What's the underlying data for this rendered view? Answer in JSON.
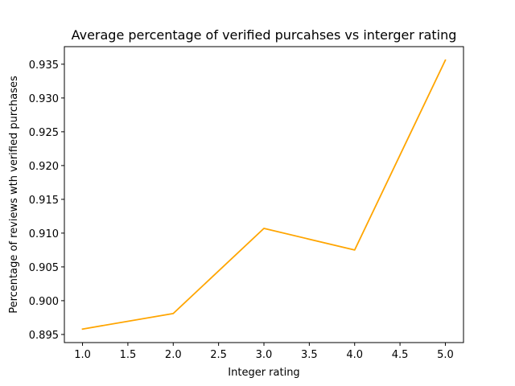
{
  "chart_data": {
    "type": "line",
    "title": "Average percentage of verified purcahses vs interger rating",
    "xlabel": "Integer rating",
    "ylabel": "Percentage of reviews wth verified purchases",
    "xlim": [
      0.8,
      5.2
    ],
    "ylim": [
      0.8938,
      0.9376
    ],
    "xticks": [
      1.0,
      1.5,
      2.0,
      2.5,
      3.0,
      3.5,
      4.0,
      4.5,
      5.0
    ],
    "xtick_labels": [
      "1.0",
      "1.5",
      "2.0",
      "2.5",
      "3.0",
      "3.5",
      "4.0",
      "4.5",
      "5.0"
    ],
    "yticks": [
      0.895,
      0.9,
      0.905,
      0.91,
      0.915,
      0.92,
      0.925,
      0.93,
      0.935
    ],
    "ytick_labels": [
      "0.895",
      "0.900",
      "0.905",
      "0.910",
      "0.915",
      "0.920",
      "0.925",
      "0.930",
      "0.935"
    ],
    "grid": false,
    "series": [
      {
        "color": "#ffa500",
        "x": [
          1,
          2,
          3,
          4,
          5
        ],
        "values": [
          0.8958,
          0.8981,
          0.9107,
          0.9075,
          0.9356
        ]
      }
    ]
  }
}
